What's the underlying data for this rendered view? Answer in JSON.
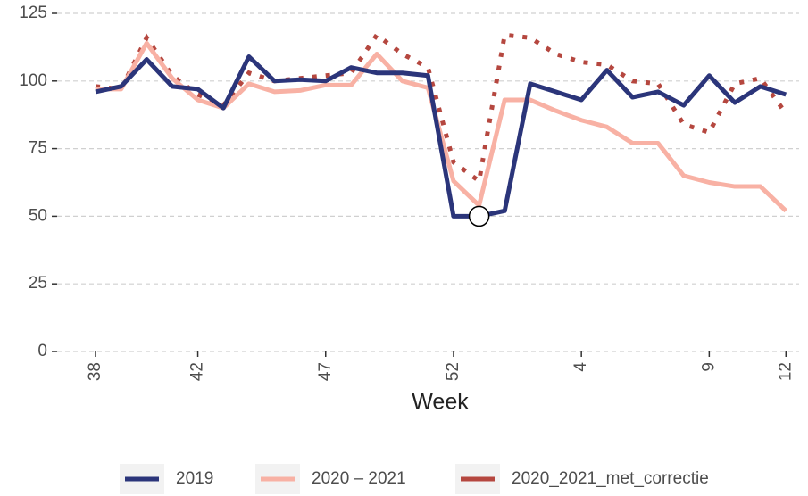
{
  "chart_data": {
    "type": "line",
    "x_label": "Week",
    "categories": [
      "38",
      null,
      null,
      null,
      "42",
      null,
      null,
      null,
      null,
      "47",
      null,
      null,
      null,
      null,
      "52",
      null,
      null,
      null,
      null,
      "4",
      null,
      null,
      null,
      null,
      "9",
      null,
      null,
      "12"
    ],
    "ylim": [
      0,
      125
    ],
    "yticks": [
      0,
      25,
      50,
      75,
      100,
      125
    ],
    "grid": true,
    "legend": "bottom",
    "series": [
      {
        "name": "2019",
        "color": "#2b357a",
        "style": "solid",
        "values": [
          96,
          98,
          108,
          98,
          97,
          90,
          109,
          100,
          100.5,
          100,
          105,
          103,
          103,
          102,
          50,
          50,
          52,
          99,
          96,
          93,
          104,
          94,
          96,
          91,
          102,
          92,
          98,
          95
        ]
      },
      {
        "name": "2020 – 2021",
        "color": "#f8b1a4",
        "style": "solid",
        "values": [
          97,
          97,
          114,
          101,
          93,
          90,
          99,
          96,
          96.5,
          98.5,
          98.5,
          110,
          100,
          97.5,
          63,
          54,
          93,
          93,
          89,
          85.5,
          83,
          77,
          77,
          65,
          62.5,
          61,
          61,
          52
        ]
      },
      {
        "name": "2020_2021_met_correctie",
        "color": "#b5473f",
        "style": "dotted",
        "values": [
          98,
          97,
          116,
          102,
          95,
          91,
          103,
          100,
          101,
          102,
          103,
          117,
          110,
          105,
          70,
          63,
          117,
          116,
          110,
          107,
          106,
          100,
          99,
          84,
          81,
          99,
          101,
          88
        ]
      }
    ]
  }
}
